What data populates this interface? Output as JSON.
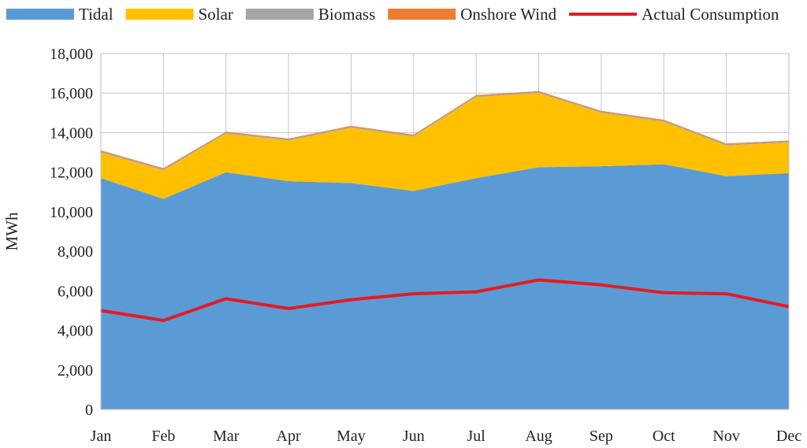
{
  "chart_data": {
    "type": "area",
    "stacked": true,
    "title": "",
    "xlabel": "",
    "ylabel": "MWh",
    "ylim": [
      0,
      18000
    ],
    "yticks": [
      0,
      2000,
      4000,
      6000,
      8000,
      10000,
      12000,
      14000,
      16000,
      18000
    ],
    "ytick_labels": [
      "0",
      "2,000",
      "4,000",
      "6,000",
      "8,000",
      "10,000",
      "12,000",
      "14,000",
      "16,000",
      "18,000"
    ],
    "grid": true,
    "legend_position": "top",
    "categories": [
      "Jan",
      "Feb",
      "Mar",
      "Apr",
      "May",
      "Jun",
      "Jul",
      "Aug",
      "Sep",
      "Oct",
      "Nov",
      "Dec"
    ],
    "series": [
      {
        "name": "Tidal",
        "kind": "area",
        "color": "#5B9BD5",
        "values": [
          11700,
          10650,
          12000,
          11550,
          11450,
          11050,
          11700,
          12250,
          12300,
          12400,
          11800,
          11950
        ]
      },
      {
        "name": "Solar",
        "kind": "area",
        "color": "#FFC000",
        "values": [
          1300,
          1450,
          1950,
          2050,
          2800,
          2750,
          4100,
          3750,
          2700,
          2150,
          1550,
          1550
        ]
      },
      {
        "name": "Biomass",
        "kind": "area",
        "color": "#A5A5A5",
        "values": [
          60,
          60,
          60,
          60,
          60,
          60,
          60,
          60,
          60,
          60,
          60,
          60
        ]
      },
      {
        "name": "Onshore Wind",
        "kind": "area",
        "color": "#ED7D31",
        "values": [
          40,
          40,
          40,
          40,
          40,
          40,
          40,
          40,
          40,
          40,
          40,
          40
        ]
      },
      {
        "name": "Actual Consumption",
        "kind": "line",
        "color": "#E31B23",
        "values": [
          5000,
          4500,
          5600,
          5100,
          5550,
          5850,
          5950,
          6550,
          6300,
          5900,
          5850,
          5200
        ]
      }
    ]
  }
}
